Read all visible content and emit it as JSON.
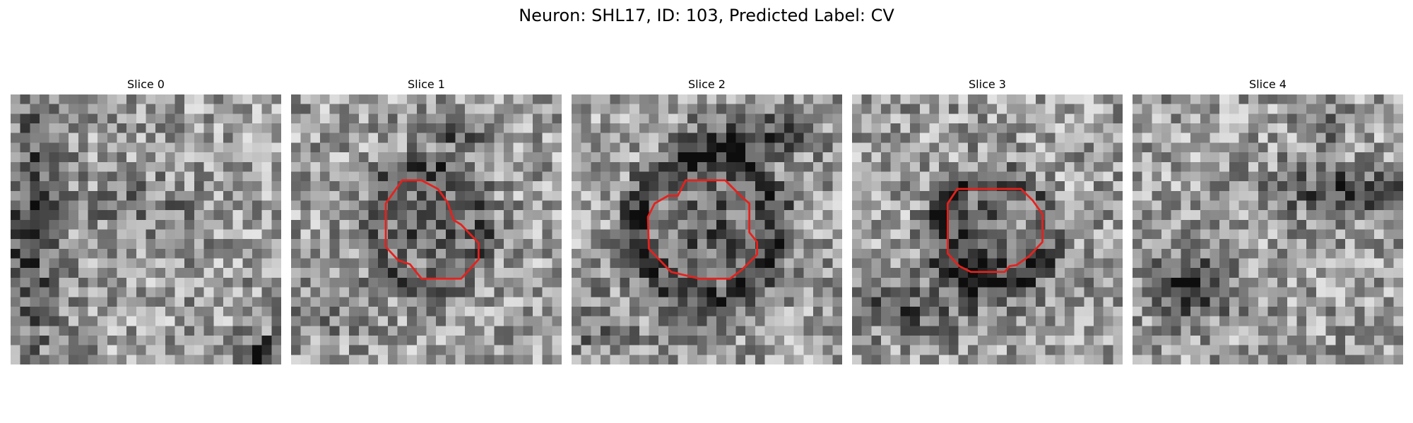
{
  "figure": {
    "title": "Neuron: SHL17, ID: 103, Predicted Label: CV"
  },
  "panels": [
    {
      "title": "Slice 0",
      "has_contour": false
    },
    {
      "title": "Slice 1",
      "has_contour": true
    },
    {
      "title": "Slice 2",
      "has_contour": true
    },
    {
      "title": "Slice 3",
      "has_contour": true
    },
    {
      "title": "Slice 4",
      "has_contour": false
    }
  ],
  "colors": {
    "contour": "#e8201c",
    "background": "#ffffff"
  },
  "image": {
    "grid_size": 28,
    "colormap": "grayscale"
  }
}
